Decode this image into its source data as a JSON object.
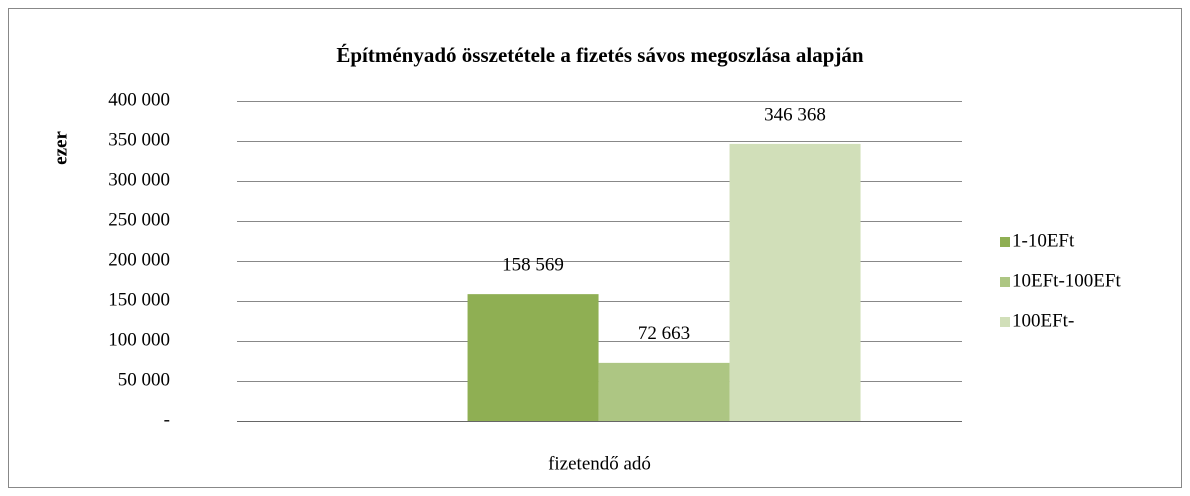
{
  "chart_data": {
    "type": "bar",
    "title": "Építményadó összetétele a fizetés sávos megoszlása alapján",
    "y_label": "ezer",
    "categories": [
      "fizetendő adó"
    ],
    "series": [
      {
        "name": "1-10EFt",
        "color": "#8faf53",
        "values": [
          158569
        ],
        "value_labels": [
          "158 569"
        ]
      },
      {
        "name": "10EFt-100EFt",
        "color": "#adc683",
        "values": [
          72663
        ],
        "value_labels": [
          "72 663"
        ]
      },
      {
        "name": "100EFt-",
        "color": "#d1dfb9",
        "values": [
          346368
        ],
        "value_labels": [
          "346 368"
        ]
      }
    ],
    "ylim": [
      0,
      400000
    ],
    "yticks": [
      {
        "value": 0,
        "label": "-"
      },
      {
        "value": 50000,
        "label": "50 000"
      },
      {
        "value": 100000,
        "label": "100 000"
      },
      {
        "value": 150000,
        "label": "150 000"
      },
      {
        "value": 200000,
        "label": "200 000"
      },
      {
        "value": 250000,
        "label": "250 000"
      },
      {
        "value": 300000,
        "label": "300 000"
      },
      {
        "value": 350000,
        "label": "350 000"
      },
      {
        "value": 400000,
        "label": "400 000"
      }
    ],
    "grid": true,
    "legend": "right"
  }
}
